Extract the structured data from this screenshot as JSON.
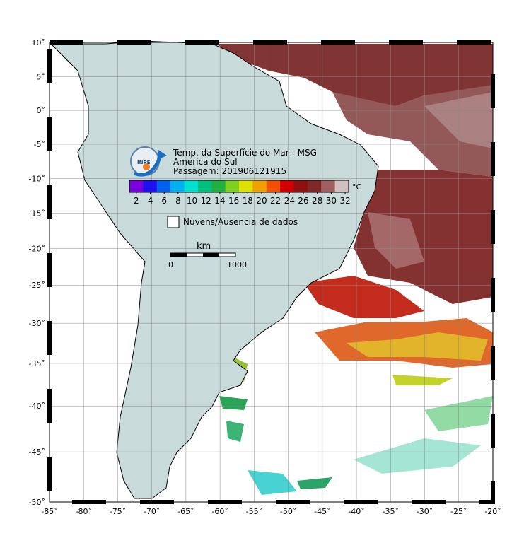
{
  "map": {
    "title_lines": [
      "Temp. da Superfície do Mar - MSG",
      "América do Sul",
      "Passagem: 201906121915"
    ],
    "logo_text": "INPE",
    "lon_ticks": [
      {
        "value": -85,
        "label": "-85˚"
      },
      {
        "value": -80,
        "label": "-80˚"
      },
      {
        "value": -75,
        "label": "-75˚"
      },
      {
        "value": -70,
        "label": "-70˚"
      },
      {
        "value": -65,
        "label": "-65˚"
      },
      {
        "value": -60,
        "label": "-60˚"
      },
      {
        "value": -55,
        "label": "-55˚"
      },
      {
        "value": -50,
        "label": "-50˚"
      },
      {
        "value": -45,
        "label": "-45˚"
      },
      {
        "value": -40,
        "label": "-40˚"
      },
      {
        "value": -35,
        "label": "-35˚"
      },
      {
        "value": -30,
        "label": "-30˚"
      },
      {
        "value": -25,
        "label": "-25˚"
      },
      {
        "value": -20,
        "label": "-20˚"
      }
    ],
    "lat_ticks": [
      {
        "value": 10,
        "label": "10˚"
      },
      {
        "value": 5,
        "label": "5˚"
      },
      {
        "value": 0,
        "label": "0˚"
      },
      {
        "value": -5,
        "label": "-5˚"
      },
      {
        "value": -10,
        "label": "-10˚"
      },
      {
        "value": -15,
        "label": "-15˚"
      },
      {
        "value": -20,
        "label": "-20˚"
      },
      {
        "value": -25,
        "label": "-25˚"
      },
      {
        "value": -30,
        "label": "-30˚"
      },
      {
        "value": -35,
        "label": "-35˚"
      },
      {
        "value": -40,
        "label": "-40˚"
      },
      {
        "value": -45,
        "label": "-45˚"
      },
      {
        "value": -50,
        "label": "-50˚"
      }
    ],
    "colorbar": {
      "unit": "°C",
      "range": [
        1,
        32.5
      ],
      "ticks": [
        2,
        4,
        6,
        8,
        10,
        12,
        14,
        16,
        18,
        20,
        22,
        24,
        26,
        28,
        30,
        32
      ],
      "colors": [
        "#7a00e0",
        "#2010f0",
        "#0060f0",
        "#00b0f0",
        "#00e0d0",
        "#00c080",
        "#20b040",
        "#80d020",
        "#e0e000",
        "#f0a000",
        "#f05000",
        "#d00000",
        "#901010",
        "#802828",
        "#a06060",
        "#d0c0c0"
      ]
    },
    "no_data_legend": "Nuvens/Ausencia de dados",
    "scale_bar": {
      "unit": "km",
      "start": "0",
      "end": "1000"
    }
  }
}
